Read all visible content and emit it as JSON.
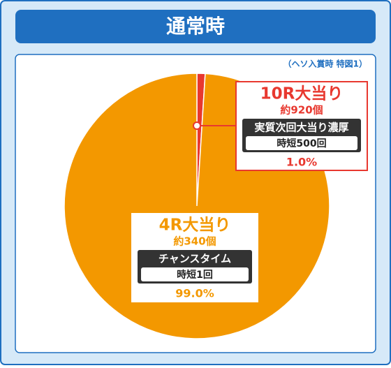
{
  "chart_data": {
    "type": "pie",
    "title": "通常時",
    "note": "（ヘソ入賞時 特図1）",
    "categories": [
      "10R大当り",
      "4R大当り"
    ],
    "values": [
      1.0,
      99.0
    ],
    "value_labels": [
      "1.0%",
      "99.0%"
    ],
    "colors": [
      "#e8382f",
      "#f39800"
    ],
    "details": [
      {
        "payout": "約920個",
        "mode": "実質次回大当り濃厚",
        "jitan": "時短500回"
      },
      {
        "payout": "約340個",
        "mode": "チャンスタイム",
        "jitan": "時短1回"
      }
    ]
  }
}
